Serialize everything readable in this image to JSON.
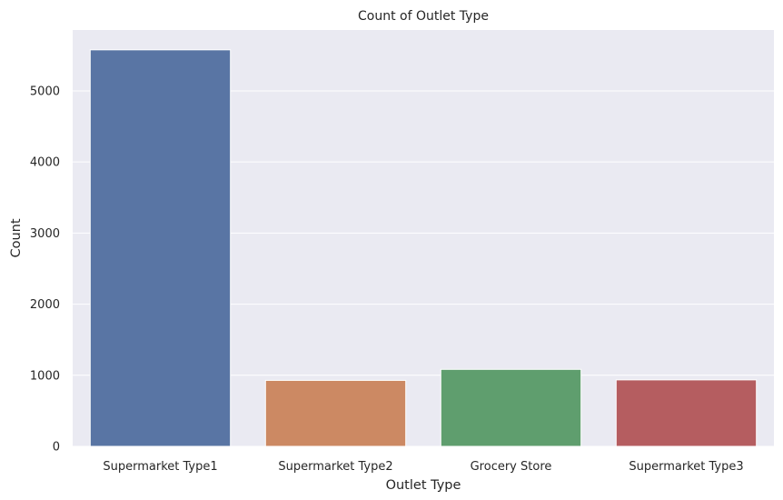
{
  "chart_data": {
    "type": "bar",
    "title": "Count of Outlet Type",
    "xlabel": "Outlet Type",
    "ylabel": "Count",
    "categories": [
      "Supermarket Type1",
      "Supermarket Type2",
      "Grocery Store",
      "Supermarket Type3"
    ],
    "values": [
      5577,
      928,
      1083,
      935
    ],
    "ylim": [
      0,
      5856
    ],
    "yticks": [
      0,
      1000,
      2000,
      3000,
      4000,
      5000
    ],
    "colors": [
      "#5975a4",
      "#cc8963",
      "#5f9e6e",
      "#b55d60"
    ],
    "background": "#eaeaf2",
    "grid": true,
    "legend": "none"
  }
}
